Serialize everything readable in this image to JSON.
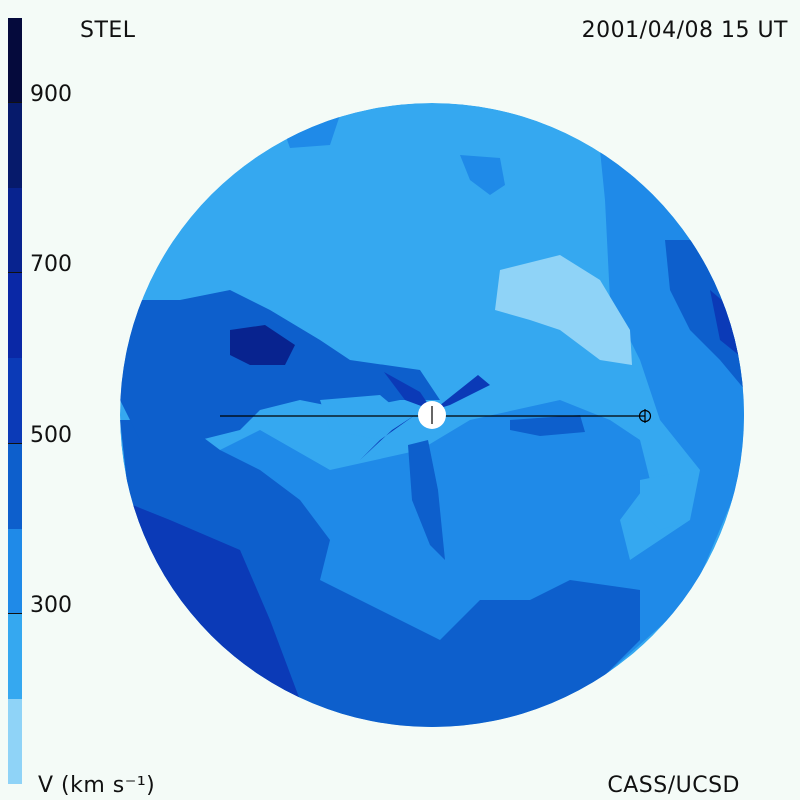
{
  "corner_labels": {
    "top_left": "STEL",
    "top_right": "2001/04/08 15 UT",
    "bottom_right": "CASS/UCSD",
    "bottom_left": "V (km s⁻¹)"
  },
  "colorbar": {
    "ticks": [
      "900",
      "700",
      "500",
      "300"
    ],
    "segments": [
      {
        "from": 1000,
        "to": 900,
        "color": "#050a3c"
      },
      {
        "from": 900,
        "to": 800,
        "color": "#061a6b"
      },
      {
        "from": 800,
        "to": 700,
        "color": "#08238f"
      },
      {
        "from": 700,
        "to": 600,
        "color": "#0a28a6"
      },
      {
        "from": 600,
        "to": 500,
        "color": "#0b3ab7"
      },
      {
        "from": 500,
        "to": 400,
        "color": "#0d5fcc"
      },
      {
        "from": 400,
        "to": 300,
        "color": "#1f8ae8"
      },
      {
        "from": 300,
        "to": 200,
        "color": "#35a8f0"
      },
      {
        "from": 200,
        "to": 100,
        "color": "#8fd3f7"
      }
    ]
  },
  "colors": {
    "background": "#f4fbf7",
    "sun": "#ffffff",
    "line": "#000000"
  },
  "icons": {
    "earth": "earth-symbol-icon",
    "sun": "sun-disk-icon"
  }
}
